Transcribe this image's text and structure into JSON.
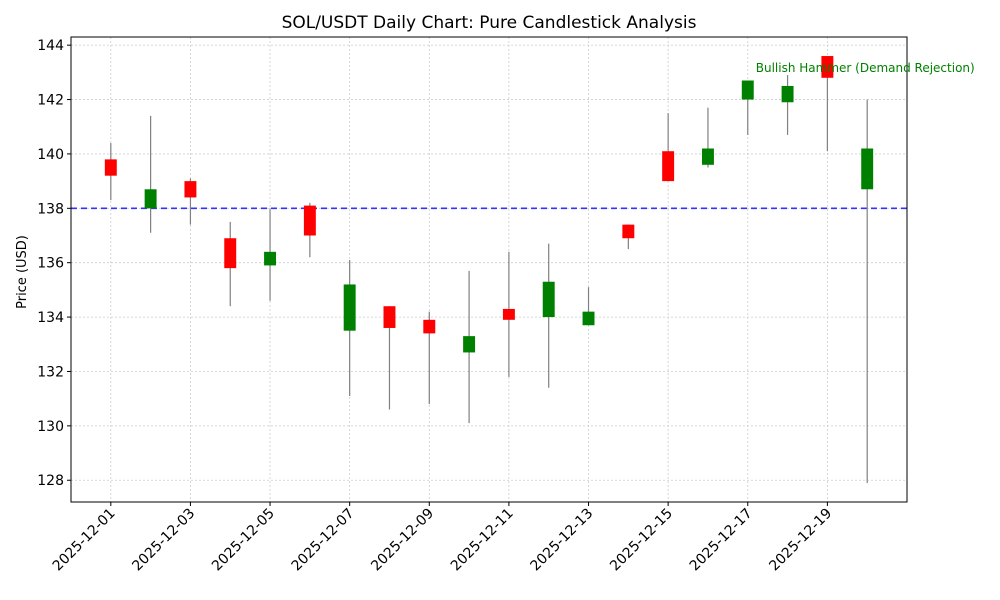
{
  "chart_data": {
    "type": "candlestick",
    "title": "SOL/USDT Daily Chart: Pure Candlestick Analysis",
    "xlabel": "",
    "ylabel": "Price (USD)",
    "x_ticks": [
      "2025-12-01",
      "2025-12-03",
      "2025-12-05",
      "2025-12-07",
      "2025-12-09",
      "2025-12-11",
      "2025-12-13",
      "2025-12-15",
      "2025-12-17",
      "2025-12-19"
    ],
    "y_ticks": [
      128,
      130,
      132,
      134,
      136,
      138,
      140,
      142,
      144
    ],
    "ylim": [
      127.2,
      144.3
    ],
    "xlim_dates": [
      "2025-11-30",
      "2025-12-21"
    ],
    "grid": true,
    "colors": {
      "up": "#008000",
      "down": "#ff0000",
      "wick": "#808080",
      "reference_line": "#3333ff",
      "annotation": "#008000"
    },
    "candles": [
      {
        "date": "2025-12-01",
        "open": 139.8,
        "high": 140.4,
        "low": 138.3,
        "close": 139.2
      },
      {
        "date": "2025-12-02",
        "open": 138.0,
        "high": 141.4,
        "low": 137.1,
        "close": 138.7
      },
      {
        "date": "2025-12-03",
        "open": 139.0,
        "high": 139.1,
        "low": 137.4,
        "close": 138.4
      },
      {
        "date": "2025-12-04",
        "open": 136.9,
        "high": 137.5,
        "low": 134.4,
        "close": 135.8
      },
      {
        "date": "2025-12-05",
        "open": 135.9,
        "high": 138.0,
        "low": 134.6,
        "close": 136.4
      },
      {
        "date": "2025-12-06",
        "open": 138.1,
        "high": 138.2,
        "low": 136.2,
        "close": 137.0
      },
      {
        "date": "2025-12-07",
        "open": 133.5,
        "high": 136.1,
        "low": 131.1,
        "close": 135.2
      },
      {
        "date": "2025-12-08",
        "open": 134.4,
        "high": 134.4,
        "low": 130.6,
        "close": 133.6
      },
      {
        "date": "2025-12-09",
        "open": 133.9,
        "high": 134.2,
        "low": 130.8,
        "close": 133.4
      },
      {
        "date": "2025-12-10",
        "open": 132.7,
        "high": 135.7,
        "low": 130.1,
        "close": 133.3
      },
      {
        "date": "2025-12-11",
        "open": 134.3,
        "high": 136.4,
        "low": 131.8,
        "close": 133.9
      },
      {
        "date": "2025-12-12",
        "open": 134.0,
        "high": 136.7,
        "low": 131.4,
        "close": 135.3
      },
      {
        "date": "2025-12-13",
        "open": 133.7,
        "high": 135.1,
        "low": 133.7,
        "close": 134.2
      },
      {
        "date": "2025-12-14",
        "open": 137.4,
        "high": 137.4,
        "low": 136.5,
        "close": 136.9
      },
      {
        "date": "2025-12-15",
        "open": 140.1,
        "high": 141.5,
        "low": 139.0,
        "close": 139.0
      },
      {
        "date": "2025-12-16",
        "open": 139.6,
        "high": 141.7,
        "low": 139.5,
        "close": 140.2
      },
      {
        "date": "2025-12-17",
        "open": 142.0,
        "high": 142.7,
        "low": 140.7,
        "close": 142.7
      },
      {
        "date": "2025-12-18",
        "open": 141.9,
        "high": 142.9,
        "low": 140.7,
        "close": 142.5
      },
      {
        "date": "2025-12-19",
        "open": 143.6,
        "high": 143.6,
        "low": 140.1,
        "close": 142.8
      },
      {
        "date": "2025-12-20",
        "open": 138.7,
        "high": 142.0,
        "low": 127.9,
        "close": 140.2
      }
    ],
    "reference_line": {
      "y": 138.0,
      "style": "dashed"
    },
    "annotations": [
      {
        "text": "Bullish Hammer (Demand Rejection)",
        "date": "2025-12-17",
        "y": 143.0
      }
    ]
  }
}
